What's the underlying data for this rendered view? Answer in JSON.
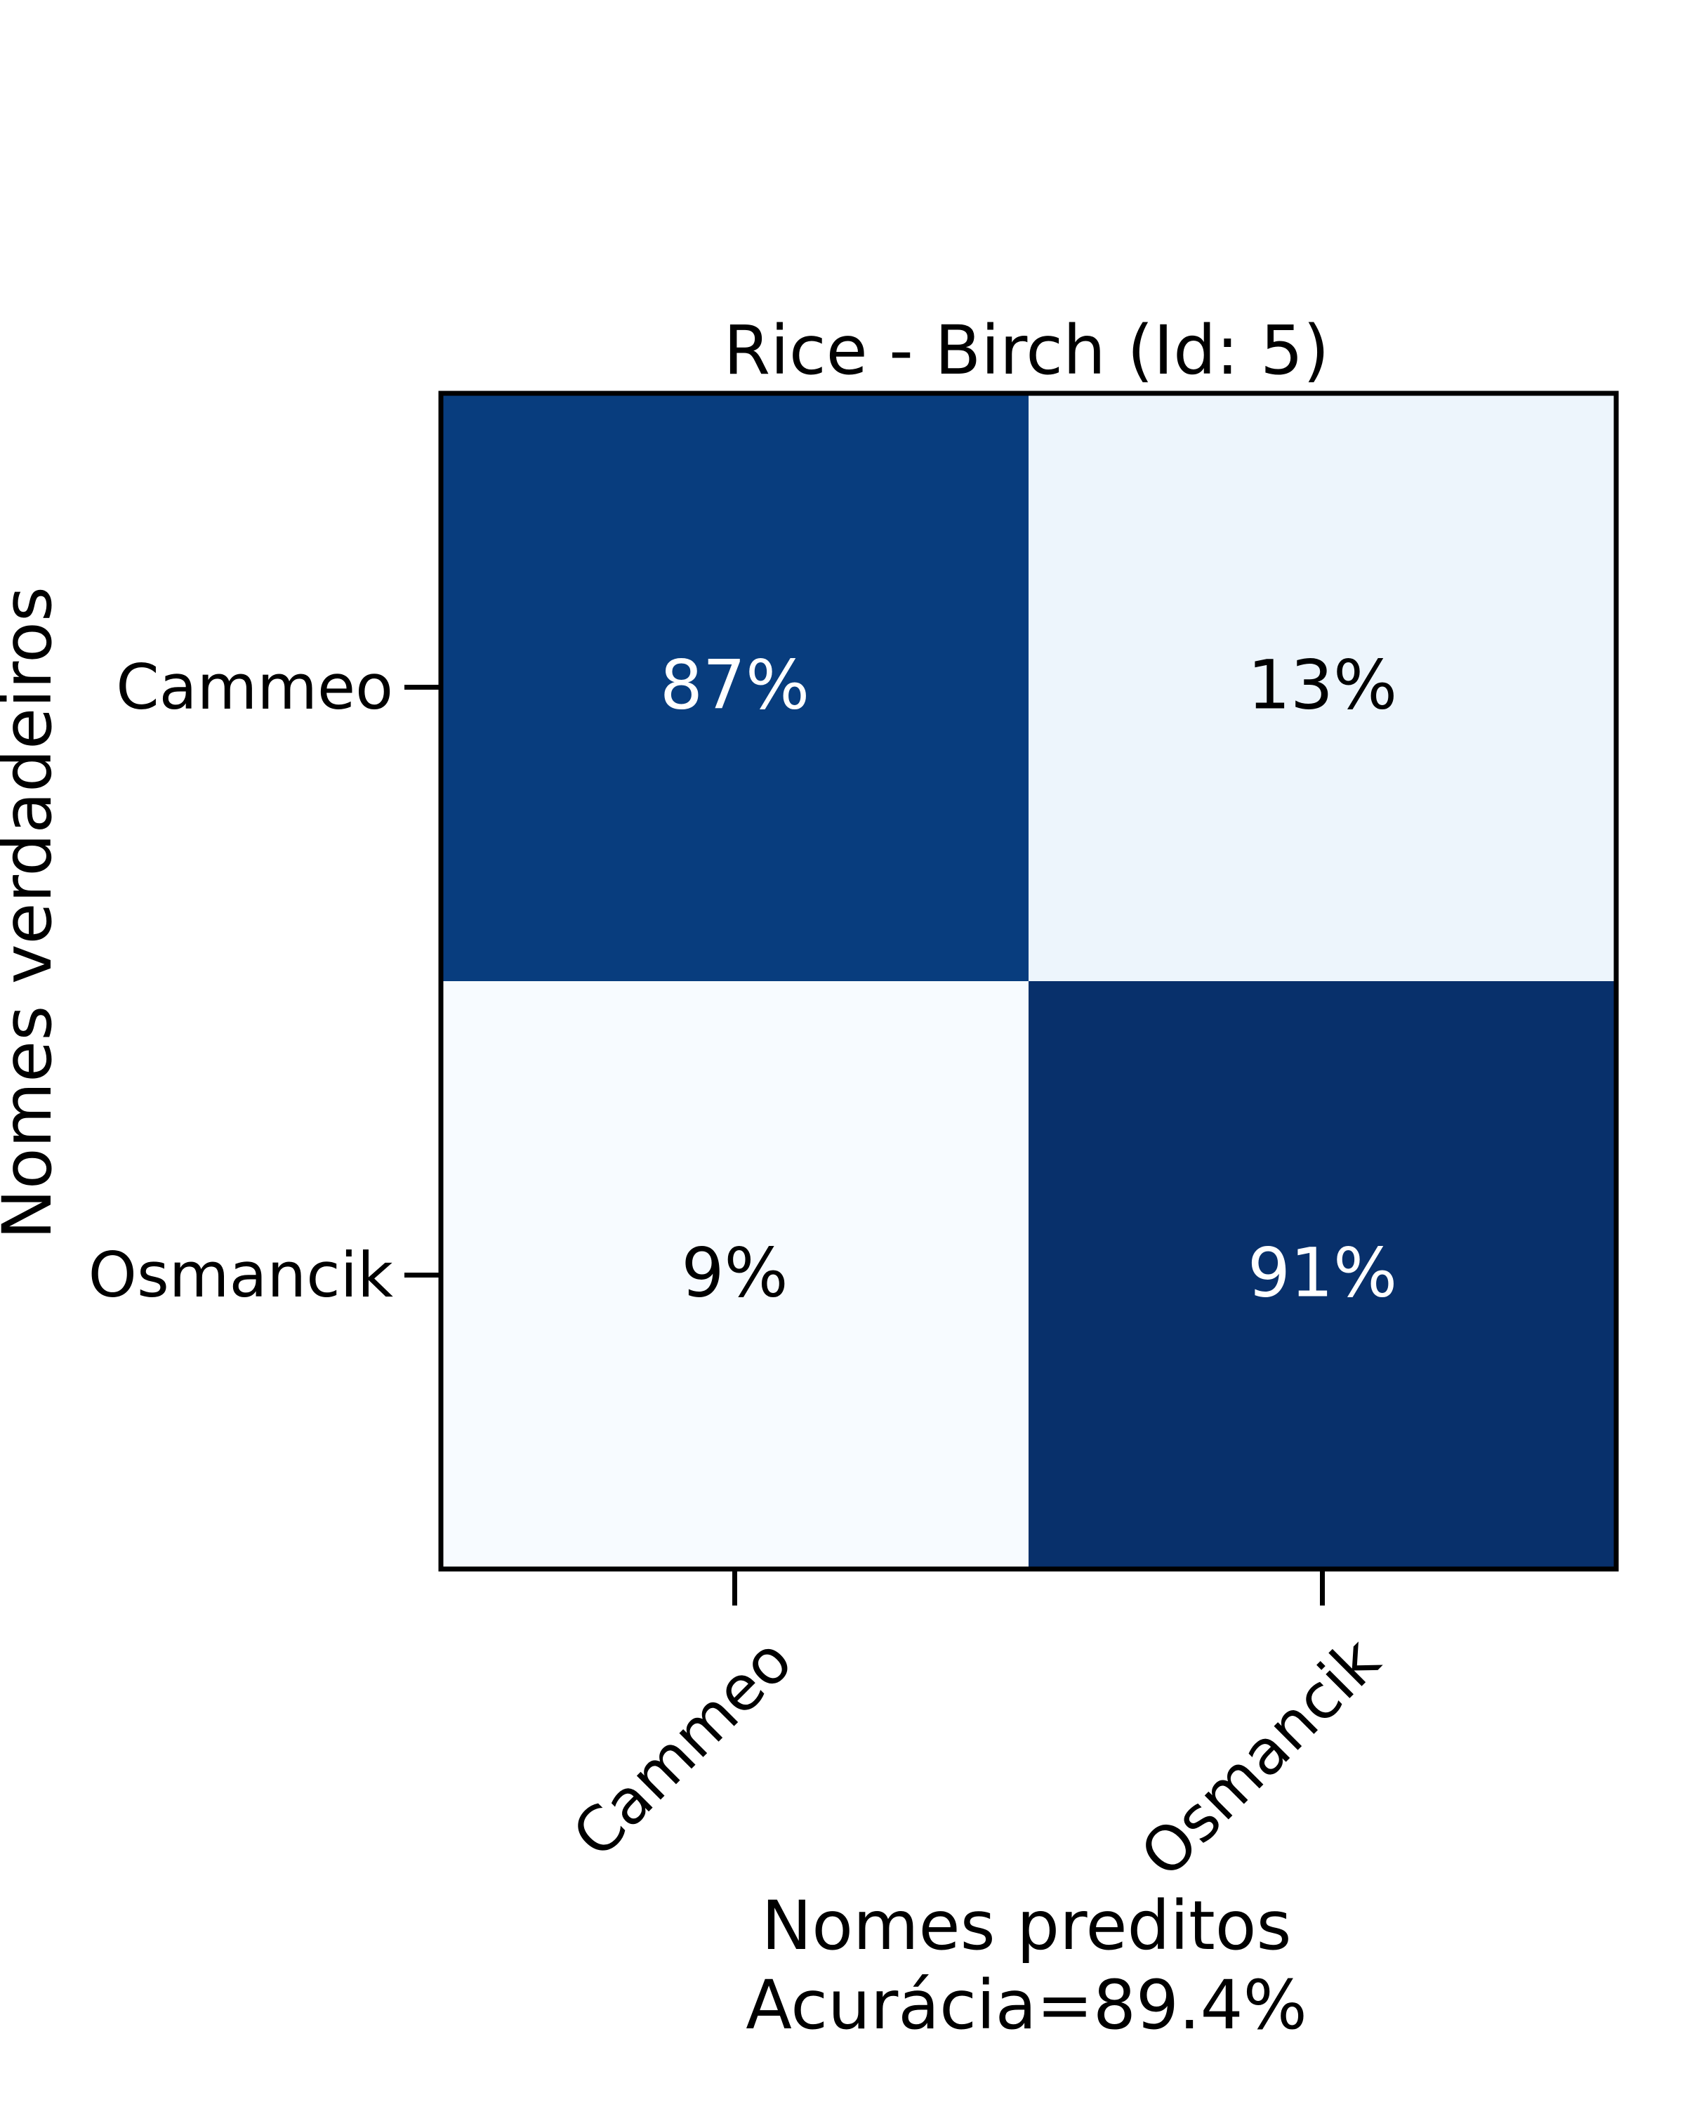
{
  "chart_data": {
    "type": "heatmap",
    "title": "Rice - Birch (Id: 5)",
    "xlabel": "Nomes preditos",
    "xlabel_line2": "Acurácia=89.4%",
    "ylabel": "Nomes verdadeiros",
    "x_categories": [
      "Cammeo",
      "Osmancik"
    ],
    "y_categories": [
      "Cammeo",
      "Osmancik"
    ],
    "values": [
      [
        87,
        13
      ],
      [
        9,
        91
      ]
    ],
    "cell_labels": [
      [
        "87%",
        "13%"
      ],
      [
        "9%",
        "91%"
      ]
    ],
    "colormap": "Blues",
    "colors": {
      "low": "#f5f9fe",
      "high": "#0b306a",
      "text_dark": "#000000",
      "text_light": "#ffffff"
    },
    "legend": false,
    "grid": false
  }
}
